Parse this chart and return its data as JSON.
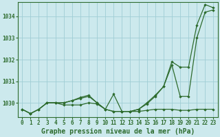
{
  "title": "Graphe pression niveau de la mer (hPa)",
  "bg_color": "#cce9ed",
  "grid_color": "#9fcdd4",
  "line_color": "#2d6b2d",
  "xlim": [
    -0.5,
    23.5
  ],
  "ylim": [
    1029.35,
    1034.65
  ],
  "yticks": [
    1030,
    1031,
    1032,
    1033,
    1034
  ],
  "xticks": [
    0,
    1,
    2,
    3,
    4,
    5,
    6,
    7,
    8,
    9,
    10,
    11,
    12,
    13,
    14,
    15,
    16,
    17,
    18,
    19,
    20,
    21,
    22,
    23
  ],
  "series1": [
    1029.7,
    1029.5,
    1029.7,
    1030.0,
    1030.0,
    1029.9,
    1029.9,
    1029.9,
    1030.0,
    1029.95,
    1029.7,
    1029.6,
    1029.6,
    1029.6,
    1029.6,
    1029.65,
    1029.7,
    1029.7,
    1029.7,
    1029.65,
    1029.65,
    1029.7,
    1029.7,
    1029.7
  ],
  "series2": [
    1029.7,
    1029.5,
    1029.7,
    1030.0,
    1030.0,
    1030.0,
    1030.1,
    1030.25,
    1030.35,
    1030.0,
    1029.7,
    1030.4,
    1029.6,
    1029.6,
    1029.7,
    1029.95,
    1030.3,
    1030.75,
    1031.75,
    1030.3,
    1030.3,
    1033.0,
    1034.2,
    1034.3
  ],
  "series3": [
    1029.7,
    1029.5,
    1029.7,
    1030.0,
    1030.0,
    1030.0,
    1030.1,
    1030.2,
    1030.3,
    1030.0,
    1029.7,
    1029.6,
    1029.6,
    1029.6,
    1029.7,
    1030.0,
    1030.35,
    1030.75,
    1031.9,
    1031.65,
    1031.65,
    1033.6,
    1034.55,
    1034.4
  ],
  "tick_fontsize": 5.5,
  "title_fontsize": 7.0
}
